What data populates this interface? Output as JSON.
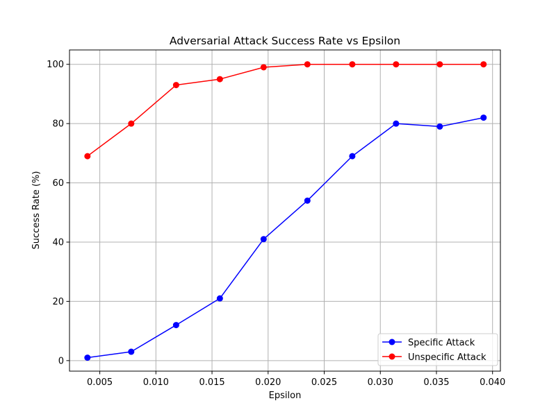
{
  "chart_data": {
    "type": "line",
    "title": "Adversarial Attack Success Rate vs Epsilon",
    "xlabel": "Epsilon",
    "ylabel": "Success Rate (%)",
    "xlim": [
      0.0023,
      0.0407
    ],
    "ylim": [
      -3.55,
      104.85
    ],
    "x_ticks": [
      0.005,
      0.01,
      0.015,
      0.02,
      0.025,
      0.03,
      0.035,
      0.04
    ],
    "x_tick_labels": [
      "0.005",
      "0.010",
      "0.015",
      "0.020",
      "0.025",
      "0.030",
      "0.035",
      "0.040"
    ],
    "y_ticks": [
      0,
      20,
      40,
      60,
      80,
      100
    ],
    "y_tick_labels": [
      "0",
      "20",
      "40",
      "60",
      "80",
      "100"
    ],
    "grid": true,
    "legend_position": "bottom-right",
    "x": [
      0.0039,
      0.0078,
      0.0118,
      0.0157,
      0.0196,
      0.0235,
      0.0275,
      0.0314,
      0.0353,
      0.0392
    ],
    "series": [
      {
        "name": "Specific Attack",
        "color": "#0000ff",
        "marker": "circle",
        "values": [
          1,
          3,
          12,
          21,
          41,
          54,
          69,
          80,
          79,
          82
        ]
      },
      {
        "name": "Unspecific Attack",
        "color": "#ff0000",
        "marker": "circle",
        "values": [
          69,
          80,
          93,
          95,
          99,
          100,
          100,
          100,
          100,
          100
        ]
      }
    ]
  }
}
